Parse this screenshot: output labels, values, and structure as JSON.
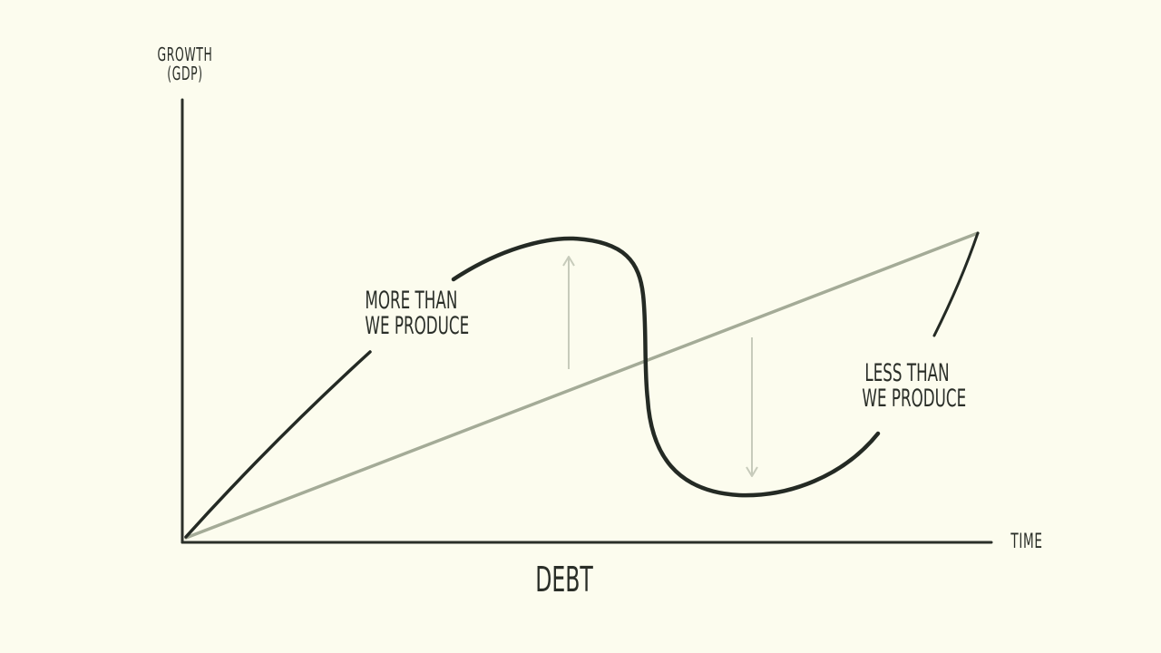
{
  "y_axis_label": {
    "line1": "GROWTH",
    "line2": "(GDP)"
  },
  "x_axis_label": "TIME",
  "caption": "DEBT",
  "annotation_above": {
    "line1": "MORE THAN",
    "line2": "WE PRODUCE"
  },
  "annotation_below": {
    "line1": "LESS THAN",
    "line2": "WE PRODUCE"
  },
  "colors": {
    "background": "#fcfcee",
    "axis": "#2b3029",
    "debt_curve": "#242a24",
    "trend_line": "#a4ab97",
    "arrow": "#c7cbbb",
    "text": "#2a2e28"
  },
  "icons": {
    "up_arrow": "arrow-up",
    "down_arrow": "arrow-down"
  }
}
